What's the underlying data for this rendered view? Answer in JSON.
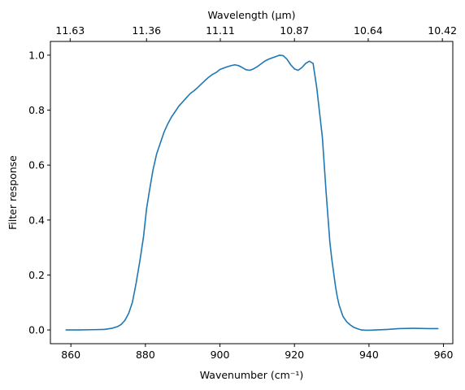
{
  "chart_data": {
    "type": "line",
    "xlabel": "Wavenumber (cm⁻¹)",
    "ylabel": "Filter response",
    "top_xlabel": "Wavelength (μm)",
    "xlim": [
      854.5,
      962.5
    ],
    "ylim": [
      -0.05,
      1.05
    ],
    "grid": false,
    "x_ticks": [
      860,
      880,
      900,
      920,
      940,
      960
    ],
    "x_tick_labels": [
      "860",
      "880",
      "900",
      "920",
      "940",
      "960"
    ],
    "y_ticks": [
      0.0,
      0.2,
      0.4,
      0.6,
      0.8,
      1.0
    ],
    "y_tick_labels": [
      "0.0",
      "0.2",
      "0.4",
      "0.6",
      "0.8",
      "1.0"
    ],
    "top_ticks": [
      859.8,
      880.3,
      900.1,
      920.0,
      939.8,
      959.7
    ],
    "top_tick_labels": [
      "11.63",
      "11.36",
      "11.11",
      "10.87",
      "10.64",
      "10.42"
    ],
    "series": [
      {
        "color": "#1f77b4",
        "x": [
          858.7,
          862,
          866,
          869,
          871,
          872.5,
          873.5,
          874.5,
          875.5,
          876.5,
          877.5,
          878.5,
          879.5,
          880.3,
          881,
          882,
          883,
          884,
          885,
          886,
          887,
          888,
          889,
          890,
          891,
          892,
          893,
          894,
          895,
          896,
          897,
          898,
          899,
          900,
          901,
          902,
          903,
          904,
          905,
          906,
          907,
          908,
          909,
          910,
          911,
          912,
          913,
          914,
          915,
          916,
          917,
          918,
          919,
          920,
          921,
          922,
          923,
          924,
          925,
          926,
          927,
          927.5,
          928,
          928.5,
          929,
          929.5,
          930,
          930.5,
          931,
          931.5,
          932,
          933,
          934,
          935,
          936,
          937,
          938,
          939,
          940,
          942,
          945,
          948,
          952,
          956,
          958.5
        ],
        "y": [
          0.0,
          0.0,
          0.001,
          0.002,
          0.006,
          0.012,
          0.02,
          0.035,
          0.06,
          0.1,
          0.17,
          0.25,
          0.34,
          0.44,
          0.5,
          0.58,
          0.64,
          0.68,
          0.72,
          0.75,
          0.775,
          0.795,
          0.815,
          0.83,
          0.845,
          0.86,
          0.87,
          0.882,
          0.895,
          0.908,
          0.92,
          0.93,
          0.937,
          0.948,
          0.953,
          0.958,
          0.962,
          0.965,
          0.962,
          0.955,
          0.947,
          0.945,
          0.95,
          0.958,
          0.968,
          0.978,
          0.985,
          0.99,
          0.995,
          1.0,
          0.998,
          0.985,
          0.965,
          0.95,
          0.945,
          0.955,
          0.97,
          0.978,
          0.97,
          0.88,
          0.76,
          0.7,
          0.6,
          0.5,
          0.41,
          0.32,
          0.26,
          0.21,
          0.16,
          0.12,
          0.09,
          0.05,
          0.03,
          0.018,
          0.009,
          0.004,
          0.0,
          -0.001,
          -0.001,
          0.0,
          0.002,
          0.005,
          0.006,
          0.005,
          0.005
        ]
      }
    ]
  }
}
